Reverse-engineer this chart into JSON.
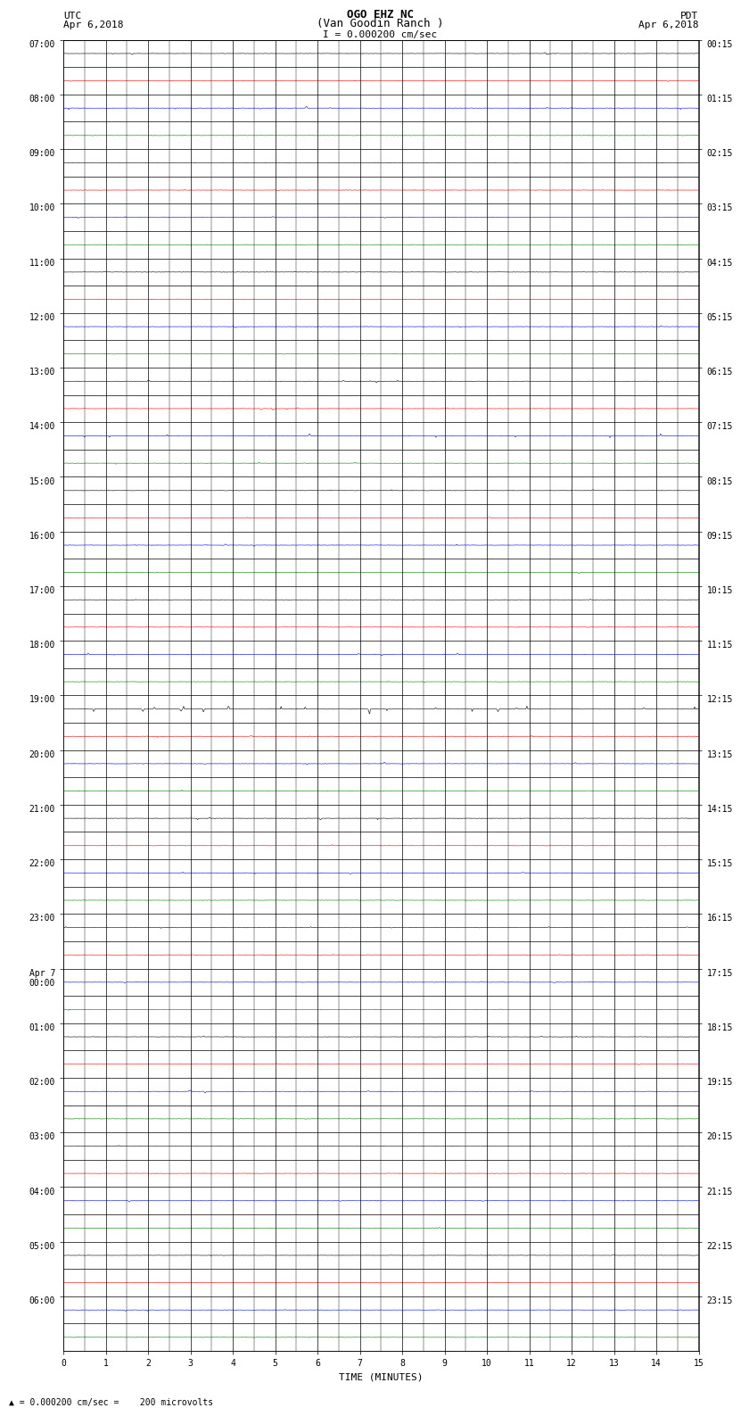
{
  "title_line1": "OGO EHZ NC",
  "title_line2": "(Van Goodin Ranch )",
  "title_line3": "I = 0.000200 cm/sec",
  "left_label_top": "UTC",
  "left_label_date": "Apr 6,2018",
  "right_label_top": "PDT",
  "right_label_date": "Apr 6,2018",
  "bottom_label": "TIME (MINUTES)",
  "scale_label": "= 0.000200 cm/sec =    200 microvolts",
  "n_traces": 48,
  "minutes_per_trace": 15,
  "left_times": [
    "07:00",
    "",
    "08:00",
    "",
    "09:00",
    "",
    "10:00",
    "",
    "11:00",
    "",
    "12:00",
    "",
    "13:00",
    "",
    "14:00",
    "",
    "15:00",
    "",
    "16:00",
    "",
    "17:00",
    "",
    "18:00",
    "",
    "19:00",
    "",
    "20:00",
    "",
    "21:00",
    "",
    "22:00",
    "",
    "23:00",
    "",
    "Apr 7\n00:00",
    "",
    "01:00",
    "",
    "02:00",
    "",
    "03:00",
    "",
    "04:00",
    "",
    "05:00",
    "",
    "06:00",
    ""
  ],
  "right_times": [
    "00:15",
    "",
    "01:15",
    "",
    "02:15",
    "",
    "03:15",
    "",
    "04:15",
    "",
    "05:15",
    "",
    "06:15",
    "",
    "07:15",
    "",
    "08:15",
    "",
    "09:15",
    "",
    "10:15",
    "",
    "11:15",
    "",
    "12:15",
    "",
    "13:15",
    "",
    "14:15",
    "",
    "15:15",
    "",
    "16:15",
    "",
    "17:15",
    "",
    "18:15",
    "",
    "19:15",
    "",
    "20:15",
    "",
    "21:15",
    "",
    "22:15",
    "",
    "23:15",
    ""
  ],
  "trace_colors_cycle": [
    "black",
    "red",
    "blue",
    "green"
  ],
  "fig_bg": "white",
  "plot_bg": "white",
  "trace_linewidth": 0.4,
  "noise_amplitude": 0.008,
  "spike_traces": {
    "0": {
      "amp": 0.04,
      "n_spikes": 8
    },
    "1": {
      "amp": 0.03,
      "n_spikes": 5
    },
    "2": {
      "amp": 0.06,
      "n_spikes": 10
    },
    "3": {
      "amp": 0.02,
      "n_spikes": 3
    },
    "4": {
      "amp": 0.02,
      "n_spikes": 3
    },
    "5": {
      "amp": 0.03,
      "n_spikes": 4
    },
    "6": {
      "amp": 0.04,
      "n_spikes": 6
    },
    "7": {
      "amp": 0.02,
      "n_spikes": 3
    },
    "8": {
      "amp": 0.03,
      "n_spikes": 4
    },
    "9": {
      "amp": 0.03,
      "n_spikes": 3
    },
    "10": {
      "amp": 0.04,
      "n_spikes": 5
    },
    "11": {
      "amp": 0.02,
      "n_spikes": 3
    },
    "12": {
      "amp": 0.06,
      "n_spikes": 10
    },
    "13": {
      "amp": 0.05,
      "n_spikes": 8
    },
    "14": {
      "amp": 0.08,
      "n_spikes": 12
    },
    "15": {
      "amp": 0.04,
      "n_spikes": 6
    },
    "16": {
      "amp": 0.04,
      "n_spikes": 6
    },
    "17": {
      "amp": 0.03,
      "n_spikes": 4
    },
    "18": {
      "amp": 0.04,
      "n_spikes": 5
    },
    "19": {
      "amp": 0.04,
      "n_spikes": 5
    },
    "20": {
      "amp": 0.04,
      "n_spikes": 6
    },
    "21": {
      "amp": 0.03,
      "n_spikes": 4
    },
    "22": {
      "amp": 0.06,
      "n_spikes": 8
    },
    "23": {
      "amp": 0.03,
      "n_spikes": 4
    },
    "24": {
      "amp": 0.12,
      "n_spikes": 20
    },
    "25": {
      "amp": 0.04,
      "n_spikes": 6
    },
    "26": {
      "amp": 0.06,
      "n_spikes": 8
    },
    "27": {
      "amp": 0.04,
      "n_spikes": 5
    },
    "28": {
      "amp": 0.06,
      "n_spikes": 8
    },
    "29": {
      "amp": 0.04,
      "n_spikes": 5
    },
    "30": {
      "amp": 0.05,
      "n_spikes": 7
    },
    "31": {
      "amp": 0.03,
      "n_spikes": 4
    },
    "32": {
      "amp": 0.05,
      "n_spikes": 7
    },
    "33": {
      "amp": 0.03,
      "n_spikes": 4
    },
    "34": {
      "amp": 0.04,
      "n_spikes": 5
    },
    "35": {
      "amp": 0.03,
      "n_spikes": 4
    },
    "36": {
      "amp": 0.04,
      "n_spikes": 5
    },
    "37": {
      "amp": 0.03,
      "n_spikes": 4
    },
    "38": {
      "amp": 0.05,
      "n_spikes": 6
    },
    "39": {
      "amp": 0.03,
      "n_spikes": 4
    },
    "40": {
      "amp": 0.03,
      "n_spikes": 4
    },
    "41": {
      "amp": 0.02,
      "n_spikes": 3
    },
    "42": {
      "amp": 0.04,
      "n_spikes": 5
    },
    "43": {
      "amp": 0.03,
      "n_spikes": 4
    },
    "44": {
      "amp": 0.03,
      "n_spikes": 4
    },
    "45": {
      "amp": 0.02,
      "n_spikes": 3
    },
    "46": {
      "amp": 0.04,
      "n_spikes": 5
    },
    "47": {
      "amp": 0.02,
      "n_spikes": 3
    }
  }
}
